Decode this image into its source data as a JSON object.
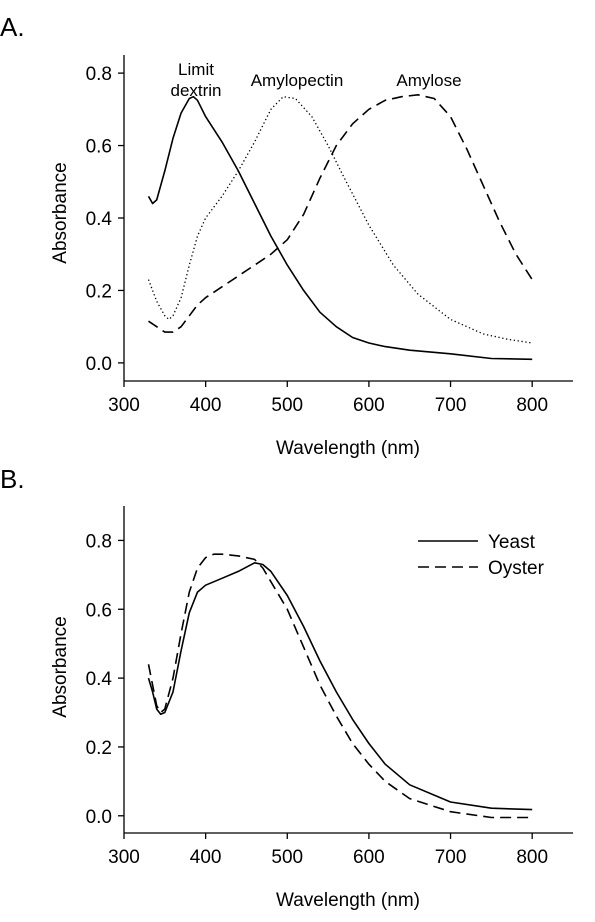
{
  "chart_data": [
    {
      "type": "line",
      "panel_label": "A.",
      "title": "",
      "xlabel": "Wavelength (nm)",
      "ylabel": "Absorbance",
      "xlim": [
        300,
        850
      ],
      "ylim": [
        -0.05,
        0.85
      ],
      "xticks": [
        300,
        400,
        500,
        600,
        700,
        800
      ],
      "yticks": [
        0.0,
        0.2,
        0.4,
        0.6,
        0.8
      ],
      "ytick_labels": [
        "0.0",
        "0.2",
        "0.4",
        "0.6",
        "0.8"
      ],
      "grid": false,
      "legend": "none",
      "series": [
        {
          "name": "Limit dextrin",
          "style": "solid",
          "x": [
            330,
            335,
            340,
            350,
            360,
            370,
            380,
            385,
            390,
            400,
            420,
            440,
            460,
            480,
            500,
            520,
            540,
            560,
            580,
            600,
            620,
            650,
            700,
            750,
            800
          ],
          "y": [
            0.46,
            0.44,
            0.45,
            0.53,
            0.62,
            0.69,
            0.73,
            0.735,
            0.725,
            0.68,
            0.61,
            0.53,
            0.44,
            0.35,
            0.27,
            0.2,
            0.14,
            0.1,
            0.07,
            0.055,
            0.045,
            0.035,
            0.025,
            0.012,
            0.01
          ]
        },
        {
          "name": "Amylopectin",
          "style": "dotted",
          "x": [
            330,
            340,
            350,
            355,
            360,
            370,
            380,
            390,
            400,
            420,
            440,
            460,
            480,
            495,
            510,
            530,
            550,
            570,
            600,
            630,
            660,
            700,
            740,
            770,
            800
          ],
          "y": [
            0.23,
            0.17,
            0.13,
            0.12,
            0.13,
            0.18,
            0.27,
            0.35,
            0.4,
            0.46,
            0.53,
            0.61,
            0.7,
            0.735,
            0.73,
            0.68,
            0.6,
            0.51,
            0.38,
            0.27,
            0.19,
            0.12,
            0.08,
            0.065,
            0.055
          ]
        },
        {
          "name": "Amylose",
          "style": "dashed",
          "x": [
            330,
            340,
            350,
            360,
            370,
            380,
            390,
            400,
            420,
            440,
            460,
            480,
            500,
            520,
            540,
            560,
            580,
            600,
            620,
            640,
            660,
            680,
            700,
            720,
            740,
            760,
            780,
            800
          ],
          "y": [
            0.115,
            0.1,
            0.085,
            0.085,
            0.1,
            0.13,
            0.16,
            0.18,
            0.21,
            0.24,
            0.27,
            0.3,
            0.34,
            0.41,
            0.51,
            0.6,
            0.66,
            0.7,
            0.725,
            0.735,
            0.74,
            0.73,
            0.68,
            0.59,
            0.49,
            0.39,
            0.3,
            0.23
          ]
        }
      ],
      "annotations": [
        {
          "text": "Limit",
          "near_series": "Limit dextrin"
        },
        {
          "text": "dextrin",
          "near_series": "Limit dextrin"
        },
        {
          "text": "Amylopectin",
          "near_series": "Amylopectin"
        },
        {
          "text": "Amylose",
          "near_series": "Amylose"
        }
      ]
    },
    {
      "type": "line",
      "panel_label": "B.",
      "title": "",
      "xlabel": "Wavelength (nm)",
      "ylabel": "Absorbance",
      "xlim": [
        300,
        850
      ],
      "ylim": [
        -0.05,
        0.9
      ],
      "xticks": [
        300,
        400,
        500,
        600,
        700,
        800
      ],
      "yticks": [
        0.0,
        0.2,
        0.4,
        0.6,
        0.8
      ],
      "ytick_labels": [
        "0.0",
        "0.2",
        "0.4",
        "0.6",
        "0.8"
      ],
      "grid": false,
      "legend": "top-right",
      "series": [
        {
          "name": "Yeast",
          "style": "solid",
          "x": [
            330,
            335,
            340,
            345,
            350,
            360,
            370,
            380,
            390,
            400,
            420,
            440,
            460,
            470,
            480,
            500,
            520,
            540,
            560,
            580,
            600,
            620,
            650,
            700,
            750,
            800
          ],
          "y": [
            0.4,
            0.36,
            0.31,
            0.295,
            0.3,
            0.36,
            0.48,
            0.59,
            0.65,
            0.67,
            0.69,
            0.71,
            0.735,
            0.73,
            0.71,
            0.64,
            0.55,
            0.45,
            0.36,
            0.28,
            0.21,
            0.15,
            0.09,
            0.04,
            0.022,
            0.018
          ]
        },
        {
          "name": "Oyster",
          "style": "dashed",
          "x": [
            330,
            335,
            340,
            345,
            350,
            360,
            370,
            380,
            390,
            400,
            410,
            420,
            440,
            460,
            470,
            480,
            500,
            520,
            540,
            560,
            580,
            600,
            620,
            650,
            700,
            750,
            800
          ],
          "y": [
            0.44,
            0.38,
            0.32,
            0.3,
            0.31,
            0.4,
            0.53,
            0.65,
            0.72,
            0.75,
            0.76,
            0.76,
            0.755,
            0.745,
            0.72,
            0.68,
            0.6,
            0.49,
            0.38,
            0.29,
            0.21,
            0.15,
            0.1,
            0.05,
            0.012,
            -0.005,
            -0.005
          ]
        }
      ]
    }
  ]
}
